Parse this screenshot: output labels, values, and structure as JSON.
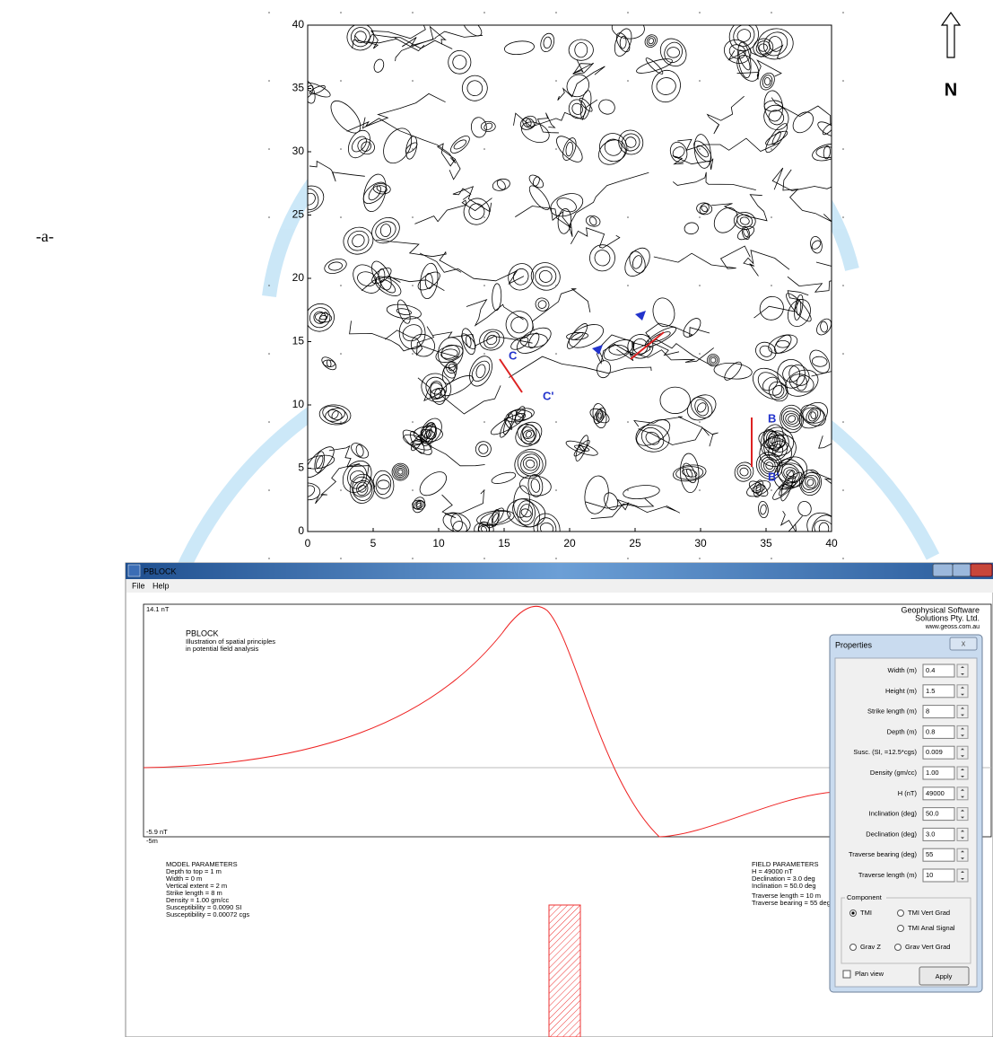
{
  "figure_label": "-a-",
  "north_label": "N",
  "map": {
    "xlim": [
      0,
      40
    ],
    "ylim": [
      0,
      40
    ],
    "xticks": [
      0,
      5,
      10,
      15,
      20,
      25,
      30,
      35,
      40
    ],
    "yticks": [
      0,
      5,
      10,
      15,
      20,
      25,
      30,
      35,
      40
    ],
    "profile_labels": [
      "B",
      "B'",
      "C",
      "C'"
    ]
  },
  "window": {
    "title": "PBLOCK",
    "menu": [
      "File",
      "Help"
    ]
  },
  "plot": {
    "y_max_label": "14.1 nT",
    "y_min_label": "-5.9 nT",
    "x_start_label": "-5m",
    "program": "PBLOCK",
    "description": [
      "Illustration of spatial principles",
      "in potential field analysis"
    ],
    "company": [
      "Geophysical Software",
      "Solutions Pty. Ltd.",
      "www.geoss.com.au"
    ]
  },
  "model_parameters": {
    "title": "MODEL PARAMETERS",
    "lines": [
      "Depth to top = 1 m",
      "Width = 0 m",
      "Vertical extent = 2 m",
      "Strike length = 8 m",
      "Density = 1.00 gm/cc",
      "Susceptibility = 0.0090 SI",
      "Susceptibility = 0.00072 cgs"
    ]
  },
  "field_parameters": {
    "title": "FIELD PARAMETERS",
    "lines": [
      "H = 49000 nT",
      "Declination = 3.0 deg",
      "Inclination = 50.0 deg"
    ],
    "traverse_lines": [
      "Traverse length = 10 m",
      "Traverse bearing = 55 deg"
    ]
  },
  "properties": {
    "title": "Properties",
    "fields": [
      {
        "label": "Width (m)",
        "value": "0.4"
      },
      {
        "label": "Height (m)",
        "value": "1.5"
      },
      {
        "label": "Strike length (m)",
        "value": "8"
      },
      {
        "label": "Depth (m)",
        "value": "0.8"
      },
      {
        "label": "Susc. (SI, =12.5*cgs)",
        "value": "0.009"
      },
      {
        "label": "Density (gm/cc)",
        "value": "1.00"
      },
      {
        "label": "H (nT)",
        "value": "49000"
      },
      {
        "label": "Inclination (deg)",
        "value": "50.0"
      },
      {
        "label": "Declination (deg)",
        "value": "3.0"
      },
      {
        "label": "Traverse bearing (deg)",
        "value": "55"
      },
      {
        "label": "Traverse length (m)",
        "value": "10"
      }
    ],
    "component_title": "Component",
    "components": [
      {
        "label": "TMI",
        "checked": true
      },
      {
        "label": "TMI Vert Grad",
        "checked": false
      },
      {
        "label": "TMI Anal Signal",
        "checked": false
      },
      {
        "label": "Grav Z",
        "checked": false
      },
      {
        "label": "Grav Vert Grad",
        "checked": false
      }
    ],
    "plan_view": "Plan view",
    "apply": "Apply"
  }
}
